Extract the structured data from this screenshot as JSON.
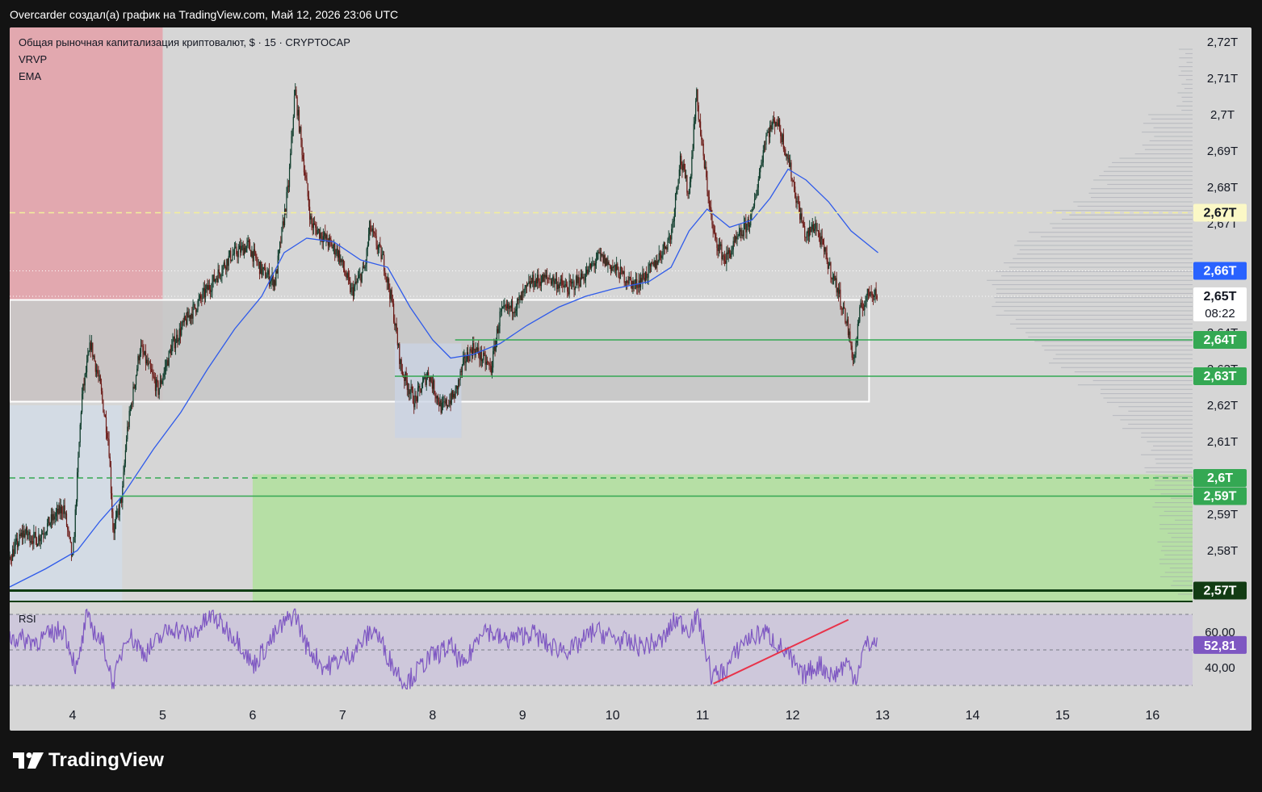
{
  "caption": "Overcarder создал(а) график на TradingView.com, Май 12, 2026 23:06 UTC",
  "brand": {
    "name": "TradingView",
    "logo_icon": "tradingview-logo-icon"
  },
  "legend": {
    "title": "Общая рыночная капитализация криптовалют, $ · 15 · CRYPTOCAP",
    "indicator_1": "VRVP",
    "indicator_2": "EMA"
  },
  "rsi_panel": {
    "label": "RSI",
    "current_value": "52,81",
    "levels": [
      "60,00",
      "40,00"
    ],
    "upper_band": 70,
    "lower_band": 30
  },
  "colors": {
    "background": "#d6d6d6",
    "frame": "#131313",
    "candle_up": "#0d3b2a",
    "candle_down": "#6b1a16",
    "ema": "#2f5bea",
    "rsi_line": "#7e57c2",
    "supply_zone": "#e3a3ab",
    "demand_zone": "#b6dfa5",
    "support_line": "#34a853",
    "trend_line": "#e8334a"
  },
  "chart_data": {
    "type": "line",
    "title": "Общая рыночная капитализация криптовалют, $ · 15 · CRYPTOCAP",
    "x_tick_labels": [
      "4",
      "5",
      "6",
      "7",
      "8",
      "9",
      "10",
      "11",
      "12",
      "13",
      "14",
      "15",
      "16"
    ],
    "x_range_days": [
      3.3,
      17.1
    ],
    "ylim_trillions": [
      2.566,
      2.724
    ],
    "y_tick_labels": [
      {
        "value": 2.72,
        "label": "2,72T"
      },
      {
        "value": 2.71,
        "label": "2,71T"
      },
      {
        "value": 2.7,
        "label": "2,7T"
      },
      {
        "value": 2.69,
        "label": "2,69T"
      },
      {
        "value": 2.68,
        "label": "2,68T"
      },
      {
        "value": 2.67,
        "label": "2,67T"
      },
      {
        "value": 2.64,
        "label": "2,64T"
      },
      {
        "value": 2.63,
        "label": "2,63T"
      },
      {
        "value": 2.62,
        "label": "2,62T"
      },
      {
        "value": 2.61,
        "label": "2,61T"
      },
      {
        "value": 2.59,
        "label": "2,59T"
      },
      {
        "value": 2.58,
        "label": "2,58T"
      }
    ],
    "series": [
      {
        "name": "CRYPTOCAP",
        "style": "candles",
        "points": [
          [
            3.3,
            2.578
          ],
          [
            3.45,
            2.585
          ],
          [
            3.6,
            2.583
          ],
          [
            3.75,
            2.588
          ],
          [
            3.9,
            2.592
          ],
          [
            4.0,
            2.577
          ],
          [
            4.1,
            2.622
          ],
          [
            4.2,
            2.637
          ],
          [
            4.3,
            2.626
          ],
          [
            4.4,
            2.61
          ],
          [
            4.45,
            2.585
          ],
          [
            4.55,
            2.595
          ],
          [
            4.6,
            2.612
          ],
          [
            4.75,
            2.636
          ],
          [
            4.95,
            2.624
          ],
          [
            5.1,
            2.636
          ],
          [
            5.25,
            2.643
          ],
          [
            5.5,
            2.652
          ],
          [
            5.75,
            2.661
          ],
          [
            5.95,
            2.664
          ],
          [
            6.1,
            2.657
          ],
          [
            6.25,
            2.654
          ],
          [
            6.4,
            2.681
          ],
          [
            6.47,
            2.707
          ],
          [
            6.55,
            2.69
          ],
          [
            6.65,
            2.67
          ],
          [
            6.8,
            2.666
          ],
          [
            6.95,
            2.662
          ],
          [
            7.1,
            2.651
          ],
          [
            7.25,
            2.658
          ],
          [
            7.3,
            2.669
          ],
          [
            7.45,
            2.66
          ],
          [
            7.55,
            2.648
          ],
          [
            7.65,
            2.63
          ],
          [
            7.8,
            2.621
          ],
          [
            7.95,
            2.629
          ],
          [
            8.1,
            2.619
          ],
          [
            8.25,
            2.623
          ],
          [
            8.35,
            2.632
          ],
          [
            8.45,
            2.636
          ],
          [
            8.65,
            2.63
          ],
          [
            8.75,
            2.645
          ],
          [
            8.95,
            2.648
          ],
          [
            9.1,
            2.654
          ],
          [
            9.3,
            2.655
          ],
          [
            9.5,
            2.652
          ],
          [
            9.7,
            2.656
          ],
          [
            9.85,
            2.661
          ],
          [
            10.05,
            2.657
          ],
          [
            10.25,
            2.653
          ],
          [
            10.45,
            2.658
          ],
          [
            10.65,
            2.667
          ],
          [
            10.75,
            2.688
          ],
          [
            10.85,
            2.678
          ],
          [
            10.93,
            2.706
          ],
          [
            11.0,
            2.69
          ],
          [
            11.12,
            2.667
          ],
          [
            11.25,
            2.66
          ],
          [
            11.4,
            2.666
          ],
          [
            11.55,
            2.672
          ],
          [
            11.7,
            2.694
          ],
          [
            11.82,
            2.699
          ],
          [
            11.95,
            2.688
          ],
          [
            12.05,
            2.676
          ],
          [
            12.15,
            2.666
          ],
          [
            12.25,
            2.67
          ],
          [
            12.38,
            2.66
          ],
          [
            12.5,
            2.652
          ],
          [
            12.6,
            2.643
          ],
          [
            12.68,
            2.632
          ],
          [
            12.75,
            2.646
          ],
          [
            12.87,
            2.652
          ],
          [
            12.95,
            2.65
          ]
        ]
      },
      {
        "name": "EMA",
        "style": "line",
        "points": [
          [
            3.3,
            2.57
          ],
          [
            3.7,
            2.575
          ],
          [
            4.05,
            2.58
          ],
          [
            4.3,
            2.588
          ],
          [
            4.55,
            2.595
          ],
          [
            4.9,
            2.608
          ],
          [
            5.2,
            2.618
          ],
          [
            5.5,
            2.63
          ],
          [
            5.8,
            2.641
          ],
          [
            6.1,
            2.65
          ],
          [
            6.35,
            2.662
          ],
          [
            6.6,
            2.666
          ],
          [
            6.9,
            2.665
          ],
          [
            7.2,
            2.66
          ],
          [
            7.5,
            2.658
          ],
          [
            7.75,
            2.647
          ],
          [
            8.0,
            2.638
          ],
          [
            8.2,
            2.633
          ],
          [
            8.45,
            2.634
          ],
          [
            8.75,
            2.637
          ],
          [
            9.05,
            2.642
          ],
          [
            9.4,
            2.647
          ],
          [
            9.7,
            2.65
          ],
          [
            10.0,
            2.652
          ],
          [
            10.4,
            2.654
          ],
          [
            10.65,
            2.658
          ],
          [
            10.85,
            2.668
          ],
          [
            11.05,
            2.674
          ],
          [
            11.3,
            2.669
          ],
          [
            11.55,
            2.671
          ],
          [
            11.75,
            2.677
          ],
          [
            11.95,
            2.685
          ],
          [
            12.15,
            2.682
          ],
          [
            12.4,
            2.676
          ],
          [
            12.65,
            2.668
          ],
          [
            12.95,
            2.662
          ]
        ]
      },
      {
        "name": "RSI",
        "style": "line",
        "points": [
          [
            3.3,
            57
          ],
          [
            3.6,
            55
          ],
          [
            3.9,
            62
          ],
          [
            4.05,
            38
          ],
          [
            4.15,
            68
          ],
          [
            4.35,
            52
          ],
          [
            4.45,
            30
          ],
          [
            4.6,
            60
          ],
          [
            4.8,
            48
          ],
          [
            5.1,
            63
          ],
          [
            5.3,
            58
          ],
          [
            5.55,
            69
          ],
          [
            5.85,
            55
          ],
          [
            6.0,
            41
          ],
          [
            6.3,
            62
          ],
          [
            6.47,
            71
          ],
          [
            6.6,
            52
          ],
          [
            6.8,
            40
          ],
          [
            7.1,
            48
          ],
          [
            7.35,
            62
          ],
          [
            7.55,
            42
          ],
          [
            7.7,
            31
          ],
          [
            7.95,
            45
          ],
          [
            8.2,
            52
          ],
          [
            8.35,
            40
          ],
          [
            8.55,
            63
          ],
          [
            8.8,
            55
          ],
          [
            9.1,
            60
          ],
          [
            9.3,
            52
          ],
          [
            9.55,
            50
          ],
          [
            9.8,
            61
          ],
          [
            10.05,
            56
          ],
          [
            10.3,
            52
          ],
          [
            10.55,
            55
          ],
          [
            10.7,
            67
          ],
          [
            10.85,
            62
          ],
          [
            10.95,
            69
          ],
          [
            11.1,
            35
          ],
          [
            11.25,
            38
          ],
          [
            11.45,
            55
          ],
          [
            11.7,
            60
          ],
          [
            11.95,
            47
          ],
          [
            12.1,
            35
          ],
          [
            12.3,
            42
          ],
          [
            12.45,
            35
          ],
          [
            12.6,
            43
          ],
          [
            12.7,
            34
          ],
          [
            12.8,
            52
          ],
          [
            12.9,
            54
          ],
          [
            12.95,
            52.8
          ]
        ]
      }
    ],
    "rsi_trendline": [
      [
        11.12,
        31
      ],
      [
        12.62,
        67
      ]
    ],
    "volume_profile": {
      "position": "right"
    },
    "zones": [
      {
        "name": "supply",
        "x": [
          3.3,
          5.0
        ],
        "y": [
          2.621,
          2.724
        ]
      },
      {
        "name": "range-box",
        "x": [
          3.3,
          12.85
        ],
        "y": [
          2.621,
          2.649
        ]
      },
      {
        "name": "demand",
        "x": [
          6.0,
          17.1
        ],
        "y": [
          2.566,
          2.601
        ]
      },
      {
        "name": "consolidation",
        "x": [
          7.58,
          8.32
        ],
        "y": [
          2.611,
          2.637
        ]
      },
      {
        "name": "lower-left-box",
        "x": [
          3.3,
          4.55
        ],
        "y": [
          2.566,
          2.62
        ]
      }
    ],
    "levels": [
      {
        "value": 2.673,
        "style": "dashed",
        "color": "#f3ef9a",
        "label": "2,67T"
      },
      {
        "value": 2.638,
        "style": "solid",
        "color": "#34a853",
        "label": "2,64T",
        "from_x": 8.25
      },
      {
        "value": 2.628,
        "style": "solid",
        "color": "#34a853",
        "label": "2,63T",
        "from_x": 7.58
      },
      {
        "value": 2.6,
        "style": "dashed",
        "color": "#34a853",
        "label": "2,6T"
      },
      {
        "value": 2.595,
        "style": "solid",
        "color": "#34a853",
        "label": "2,59T",
        "from_x": 4.45
      },
      {
        "value": 2.569,
        "style": "solid",
        "color": "#0f3d13",
        "label": "2,57T"
      }
    ],
    "price_tags": [
      {
        "label": "2,66T",
        "value": 2.657,
        "bg": "#2962ff",
        "fg": "#ffffff"
      },
      {
        "label": "2,65T",
        "value": 2.65,
        "bg": "#ffffff",
        "fg": "#131722",
        "sub": "08:22"
      }
    ],
    "ema_last_label": "2,66T",
    "countdown": "08:22"
  }
}
